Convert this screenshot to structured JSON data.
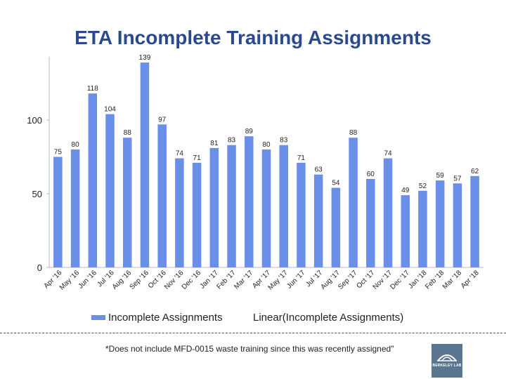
{
  "chart_data": {
    "type": "bar",
    "title": "ETA Incomplete Training Assignments",
    "categories": [
      "Apr '16",
      "May '16",
      "Jun '16",
      "Jul '16",
      "Aug '16",
      "Sep '16",
      "Oct '16",
      "Nov '16",
      "Dec '16",
      "Jan '17",
      "Feb '17",
      "Mar '17",
      "Apr '17",
      "May '17",
      "Jun '17",
      "Jul '17",
      "Aug '17",
      "Sep '17",
      "Oct '17",
      "Nov '17",
      "Dec '17",
      "Jan '18",
      "Feb '18",
      "Mar '18",
      "Apr '18"
    ],
    "series": [
      {
        "name": "Incomplete Assignments",
        "values": [
          75,
          80,
          118,
          104,
          88,
          139,
          97,
          74,
          71,
          81,
          83,
          89,
          80,
          83,
          71,
          63,
          54,
          88,
          60,
          74,
          49,
          52,
          59,
          57,
          62
        ]
      }
    ],
    "ylim": [
      0,
      140
    ],
    "yticks": [
      0,
      50,
      100
    ],
    "grid": false,
    "legend": [
      "Incomplete Assignments",
      "Linear(Incomplete Assignments)"
    ],
    "legend_position": "bottom",
    "bar_color": "#6a8fe8"
  },
  "footnote": "*Does not include MFD-0015 waste training since this was recently assigned\"",
  "logo_text": "BERKELEY LAB"
}
